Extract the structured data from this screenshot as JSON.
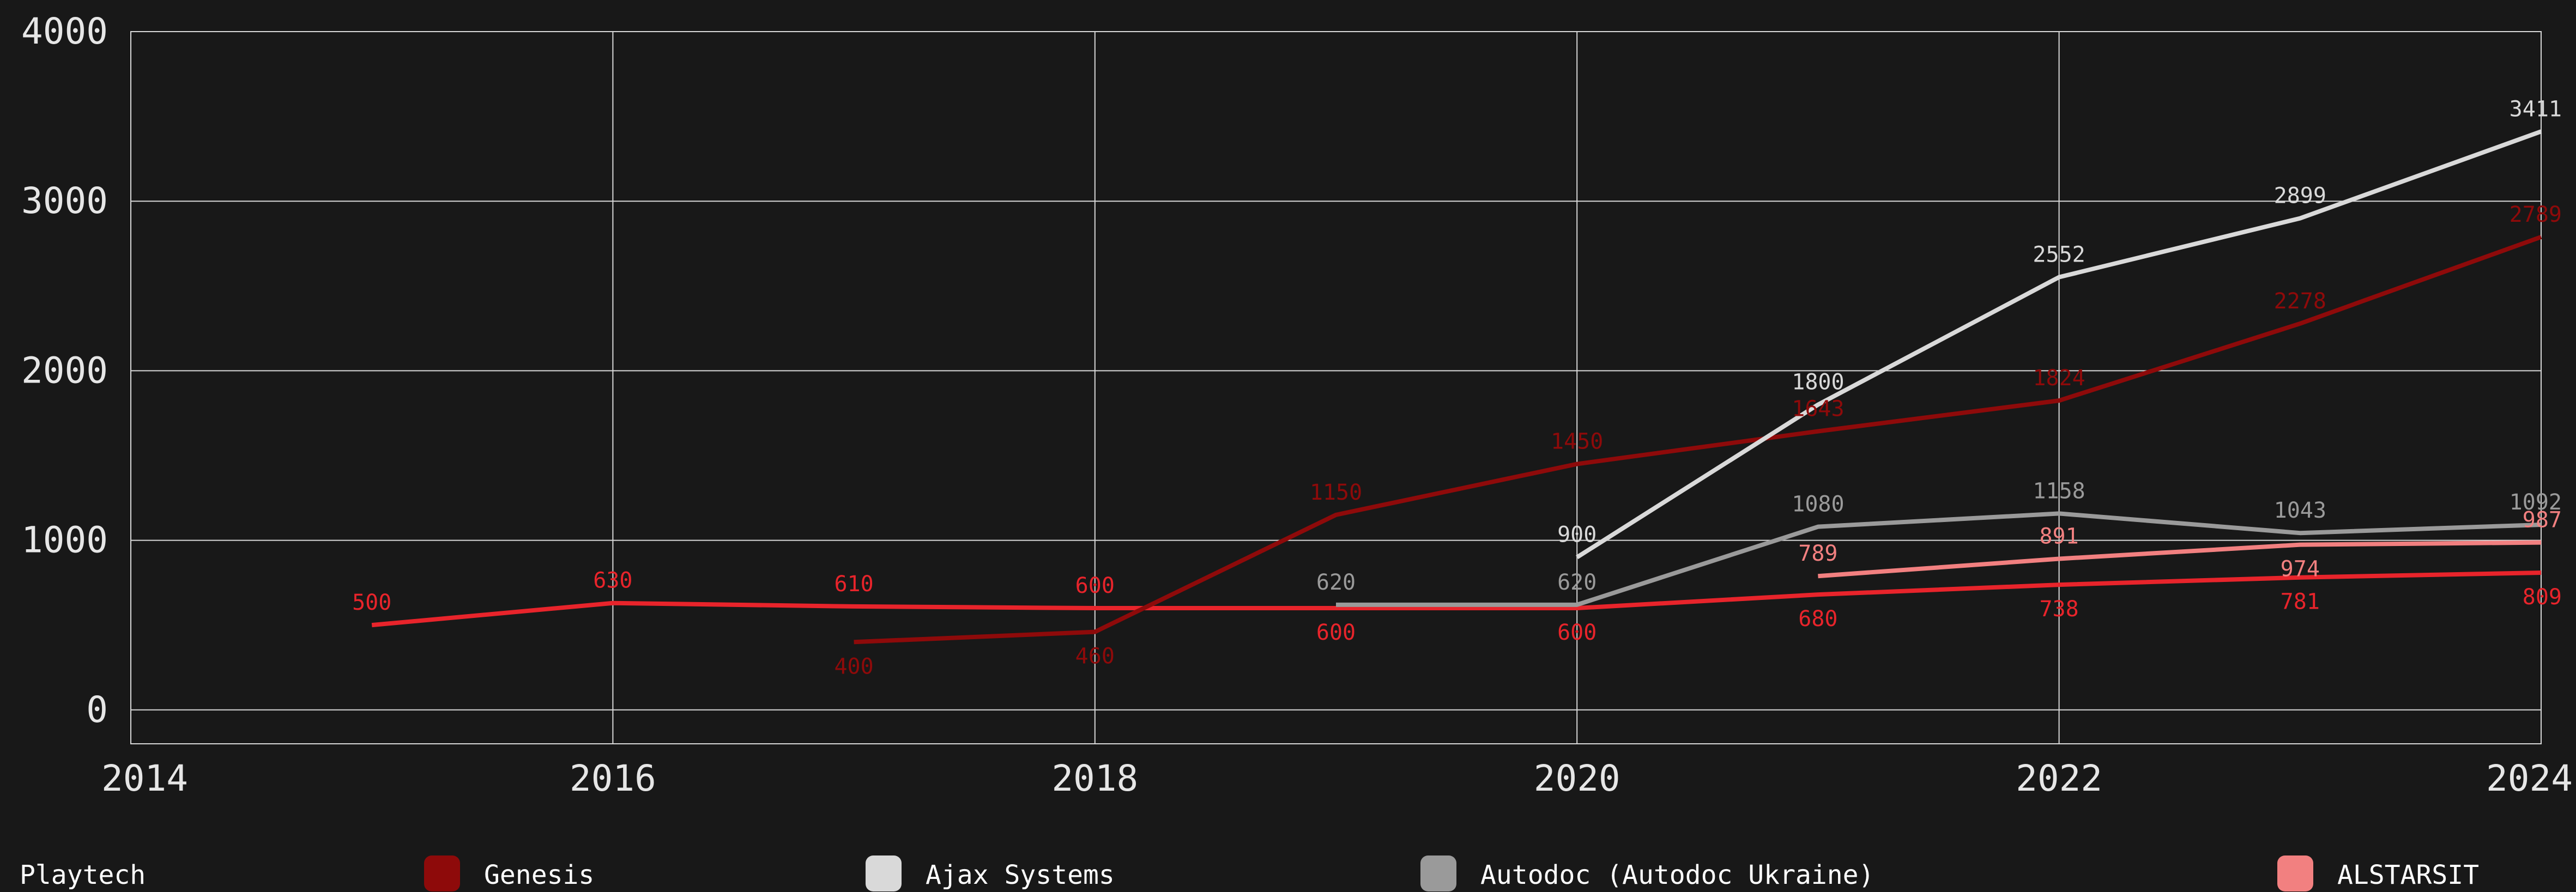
{
  "chart_data": {
    "type": "line",
    "xlim": [
      2014,
      2024
    ],
    "ylim": [
      -200,
      4000
    ],
    "x_ticks": [
      "2014",
      "2016",
      "2018",
      "2020",
      "2022",
      "2024"
    ],
    "y_ticks": [
      "0",
      "1000",
      "2000",
      "3000",
      "4000"
    ],
    "grid": true,
    "legend_position": "bottom",
    "series": [
      {
        "name": "Playtech",
        "color": "#e8242b",
        "x": [
          2015,
          2016,
          2017,
          2018,
          2019,
          2020,
          2021,
          2022,
          2023,
          2024
        ],
        "values": [
          500,
          630,
          610,
          600,
          600,
          600,
          680,
          738,
          781,
          809
        ],
        "labels": [
          "500",
          "630",
          "610",
          "600",
          "600",
          "600",
          "680",
          "738",
          "781",
          "809"
        ],
        "label_pos": [
          "above",
          "above",
          "above",
          "above",
          "below",
          "below",
          "below",
          "below",
          "below",
          "below"
        ]
      },
      {
        "name": "Genesis",
        "color": "#8e0a0a",
        "x": [
          2017,
          2018,
          2019,
          2020,
          2021,
          2022,
          2023,
          2024
        ],
        "values": [
          400,
          460,
          1150,
          1450,
          1643,
          1824,
          2278,
          2789
        ],
        "labels": [
          "400",
          "460",
          "1150",
          "1450",
          "1643",
          "1824",
          "2278",
          "2789"
        ],
        "label_pos": [
          "below",
          "below",
          "above",
          "above",
          "above",
          "above",
          "above",
          "above"
        ]
      },
      {
        "name": "Ajax Systems",
        "color": "#d9d9d9",
        "x": [
          2020,
          2021,
          2022,
          2023,
          2024
        ],
        "values": [
          900,
          1800,
          2552,
          2899,
          3411
        ],
        "labels": [
          "900",
          "1800",
          "2552",
          "2899",
          "3411"
        ],
        "label_pos": [
          "above",
          "above",
          "above",
          "above",
          "above"
        ]
      },
      {
        "name": "Autodoc (Autodoc Ukraine)",
        "color": "#9a9a9a",
        "x": [
          2019,
          2020,
          2021,
          2022,
          2023,
          2024
        ],
        "values": [
          620,
          620,
          1080,
          1158,
          1043,
          1092
        ],
        "labels": [
          "620",
          "620",
          "1080",
          "1158",
          "1043",
          "1092"
        ],
        "label_pos": [
          "above",
          "above",
          "above",
          "above",
          "above",
          "above"
        ]
      },
      {
        "name": "ALSTARSIT",
        "color": "#f28080",
        "x": [
          2021,
          2022,
          2023,
          2024
        ],
        "values": [
          789,
          891,
          974,
          987
        ],
        "labels": [
          "789",
          "891",
          "974",
          "987"
        ],
        "label_pos": [
          "above",
          "above",
          "below",
          "above"
        ]
      }
    ]
  }
}
